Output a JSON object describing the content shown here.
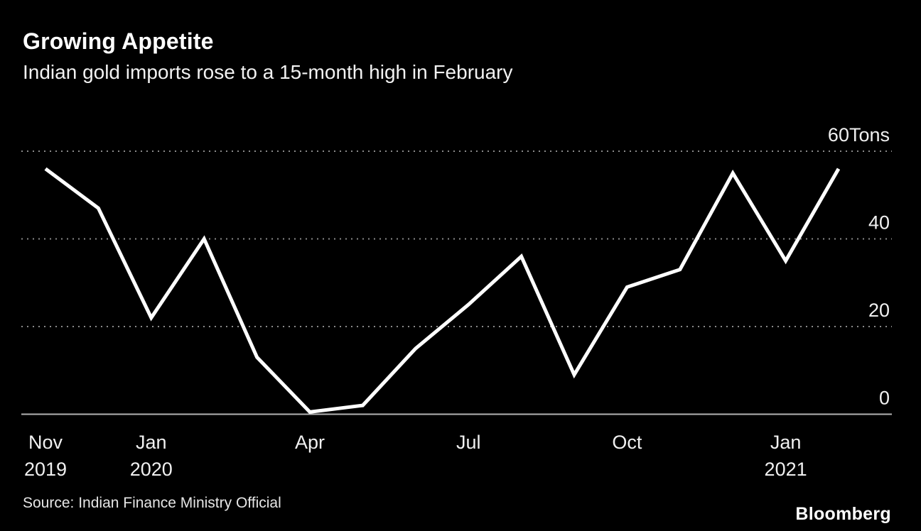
{
  "header": {
    "title": "Growing Appetite",
    "subtitle": "Indian gold imports rose to a 15-month high in February"
  },
  "footer": {
    "source": "Source: Indian Finance Ministry Official",
    "brand": "Bloomberg"
  },
  "chart_data": {
    "type": "line",
    "title": "Growing Appetite",
    "subtitle": "Indian gold imports rose to a 15-month high in February",
    "unit": "Tons",
    "x": [
      "Nov 2019",
      "Dec 2019",
      "Jan 2020",
      "Feb 2020",
      "Mar 2020",
      "Apr 2020",
      "May 2020",
      "Jun 2020",
      "Jul 2020",
      "Aug 2020",
      "Sep 2020",
      "Oct 2020",
      "Nov 2020",
      "Dec 2020",
      "Jan 2021",
      "Feb 2021"
    ],
    "values": [
      56,
      47,
      22,
      40,
      13,
      0.5,
      2,
      15,
      25,
      36,
      9,
      29,
      33,
      55,
      35,
      56
    ],
    "ylim": [
      0,
      60
    ],
    "yticks": [
      0,
      20,
      40,
      60
    ],
    "ytick_labels": [
      "0",
      "20",
      "40",
      "60Tons"
    ],
    "gridline_values": [
      20,
      40,
      60
    ],
    "xticks": [
      {
        "index": 0,
        "label": "Nov",
        "sub": "2019"
      },
      {
        "index": 2,
        "label": "Jan",
        "sub": "2020"
      },
      {
        "index": 5,
        "label": "Apr",
        "sub": ""
      },
      {
        "index": 8,
        "label": "Jul",
        "sub": ""
      },
      {
        "index": 11,
        "label": "Oct",
        "sub": ""
      },
      {
        "index": 14,
        "label": "Jan",
        "sub": "2021"
      }
    ],
    "grid": "dotted horizontal",
    "legend_position": "none",
    "line_color": "#ffffff",
    "gridline_color": "#8a8a8a",
    "axis_line_color": "#b3b3b3",
    "tick_label_color": "#f0f0f0",
    "background": "#000000"
  }
}
